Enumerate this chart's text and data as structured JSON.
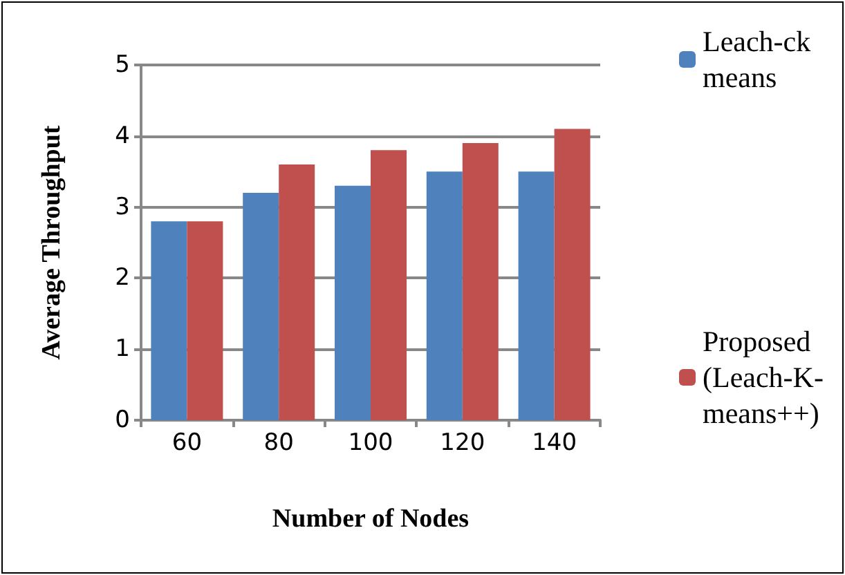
{
  "chart_data": {
    "type": "bar",
    "xlabel": "Number of Nodes",
    "ylabel": "Average Throughput",
    "categories": [
      "60",
      "80",
      "100",
      "120",
      "140"
    ],
    "series": [
      {
        "name": "Leach-ckmeans",
        "color": "#4f81bd",
        "values": [
          2.8,
          3.2,
          3.3,
          3.5,
          3.5
        ]
      },
      {
        "name": "Proposed (Leach-K-means++)",
        "color": "#c0504d",
        "values": [
          2.8,
          3.6,
          3.8,
          3.9,
          4.1
        ]
      }
    ],
    "ylim": [
      0,
      5
    ],
    "yticks": [
      0,
      1,
      2,
      3,
      4,
      5
    ],
    "grid": "y",
    "legend": "right"
  }
}
